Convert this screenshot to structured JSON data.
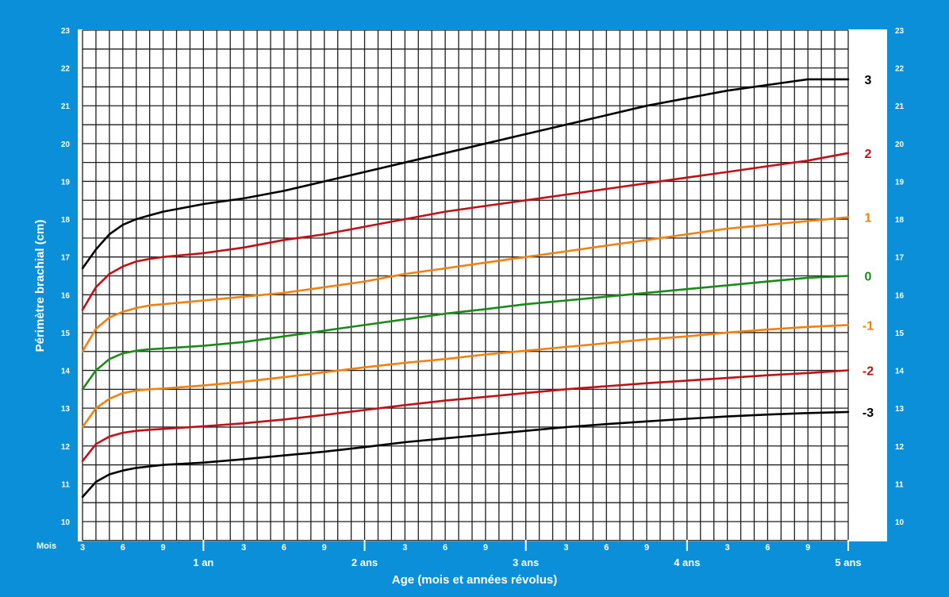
{
  "chart_data": {
    "type": "line",
    "ylabel": "Périmètre brachial (cm)",
    "xlabel": "Age (mois et années révolus)",
    "x_unit_label": "Mois",
    "xlim": [
      3,
      60
    ],
    "ylim": [
      10,
      23
    ],
    "grid": true,
    "y_ticks": [
      10,
      11,
      12,
      13,
      14,
      15,
      16,
      17,
      18,
      19,
      20,
      21,
      22,
      23
    ],
    "x_ticks": [
      {
        "x": 3,
        "label": "3"
      },
      {
        "x": 6,
        "label": "6"
      },
      {
        "x": 9,
        "label": "9"
      },
      {
        "x": 15,
        "label": "3"
      },
      {
        "x": 18,
        "label": "6"
      },
      {
        "x": 21,
        "label": "9"
      },
      {
        "x": 27,
        "label": "3"
      },
      {
        "x": 30,
        "label": "6"
      },
      {
        "x": 33,
        "label": "9"
      },
      {
        "x": 39,
        "label": "3"
      },
      {
        "x": 42,
        "label": "6"
      },
      {
        "x": 45,
        "label": "9"
      },
      {
        "x": 51,
        "label": "3"
      },
      {
        "x": 54,
        "label": "6"
      },
      {
        "x": 57,
        "label": "9"
      }
    ],
    "year_labels": [
      {
        "x": 12,
        "label": "1 an"
      },
      {
        "x": 24,
        "label": "2 ans"
      },
      {
        "x": 36,
        "label": "3 ans"
      },
      {
        "x": 48,
        "label": "4 ans"
      },
      {
        "x": 60,
        "label": "5 ans"
      }
    ],
    "x": [
      3,
      4,
      5,
      6,
      7,
      8,
      9,
      12,
      15,
      18,
      21,
      24,
      27,
      30,
      33,
      36,
      39,
      42,
      45,
      48,
      51,
      54,
      57,
      60
    ],
    "series": [
      {
        "name": "3",
        "color": "#000000",
        "values": [
          16.7,
          17.2,
          17.6,
          17.85,
          18.0,
          18.1,
          18.2,
          18.4,
          18.55,
          18.75,
          19.0,
          19.25,
          19.5,
          19.75,
          20.0,
          20.25,
          20.5,
          20.75,
          21.0,
          21.2,
          21.4,
          21.55,
          21.7,
          21.7
        ]
      },
      {
        "name": "2",
        "color": "#c0101a",
        "values": [
          15.6,
          16.2,
          16.55,
          16.75,
          16.88,
          16.95,
          17.0,
          17.1,
          17.25,
          17.45,
          17.6,
          17.8,
          18.0,
          18.2,
          18.35,
          18.5,
          18.65,
          18.8,
          18.95,
          19.1,
          19.25,
          19.4,
          19.55,
          19.75
        ]
      },
      {
        "name": "1",
        "color": "#f08010",
        "values": [
          14.5,
          15.1,
          15.4,
          15.55,
          15.65,
          15.72,
          15.75,
          15.85,
          15.95,
          16.05,
          16.2,
          16.35,
          16.55,
          16.7,
          16.85,
          17.0,
          17.15,
          17.3,
          17.45,
          17.6,
          17.75,
          17.85,
          17.95,
          18.05
        ]
      },
      {
        "name": "0",
        "color": "#1a8a1a",
        "values": [
          13.5,
          14.0,
          14.3,
          14.45,
          14.52,
          14.56,
          14.58,
          14.65,
          14.75,
          14.9,
          15.05,
          15.2,
          15.35,
          15.5,
          15.62,
          15.75,
          15.85,
          15.95,
          16.05,
          16.15,
          16.25,
          16.35,
          16.45,
          16.5
        ]
      },
      {
        "name": "-1",
        "color": "#f08010",
        "values": [
          12.5,
          13.0,
          13.25,
          13.4,
          13.47,
          13.5,
          13.52,
          13.6,
          13.7,
          13.82,
          13.95,
          14.08,
          14.2,
          14.3,
          14.42,
          14.52,
          14.62,
          14.72,
          14.82,
          14.9,
          15.0,
          15.08,
          15.15,
          15.2
        ]
      },
      {
        "name": "-2",
        "color": "#c0101a",
        "values": [
          11.6,
          12.05,
          12.25,
          12.35,
          12.4,
          12.43,
          12.45,
          12.52,
          12.6,
          12.7,
          12.82,
          12.95,
          13.08,
          13.2,
          13.3,
          13.4,
          13.5,
          13.58,
          13.66,
          13.73,
          13.8,
          13.87,
          13.93,
          14.0
        ]
      },
      {
        "name": "-3",
        "color": "#000000",
        "values": [
          10.65,
          11.05,
          11.25,
          11.35,
          11.42,
          11.46,
          11.5,
          11.56,
          11.65,
          11.75,
          11.85,
          11.97,
          12.1,
          12.2,
          12.3,
          12.4,
          12.5,
          12.58,
          12.65,
          12.72,
          12.78,
          12.83,
          12.87,
          12.9
        ]
      }
    ]
  },
  "colors": {
    "frame_background": "#0b8fd8",
    "plot_background": "#ffffff",
    "grid_line": "#1e1e1e",
    "axis_text": "#ffffff"
  }
}
